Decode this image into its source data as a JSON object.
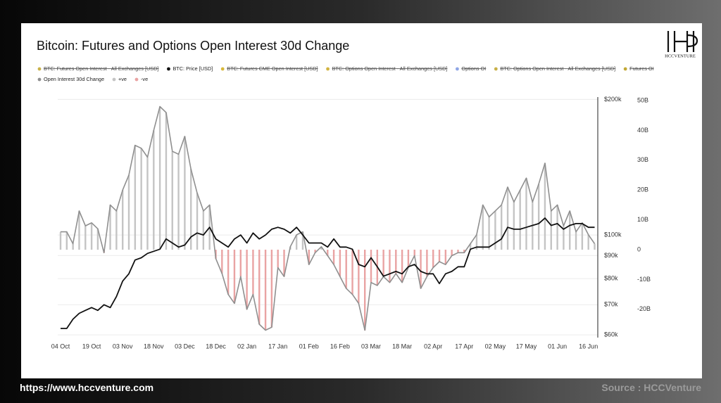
{
  "chart_data": {
    "type": "bar",
    "title": "Bitcoin: Futures and Options Open Interest 30d Change",
    "categories": [
      "04 Oct",
      null,
      null,
      null,
      null,
      "19 Oct",
      null,
      null,
      null,
      null,
      "03 Nov",
      null,
      null,
      null,
      null,
      "18 Nov",
      null,
      null,
      null,
      null,
      "03 Dec",
      null,
      null,
      null,
      null,
      "18 Dec",
      null,
      null,
      null,
      null,
      "02 Jan",
      null,
      null,
      null,
      null,
      "17 Jan",
      null,
      null,
      null,
      null,
      "01 Feb",
      null,
      null,
      null,
      null,
      "16 Feb",
      null,
      null,
      null,
      null,
      "03 Mar",
      null,
      null,
      null,
      null,
      "18 Mar",
      null,
      null,
      null,
      null,
      "02 Apr",
      null,
      null,
      null,
      null,
      "17 Apr",
      null,
      null,
      null,
      null,
      "02 May",
      null,
      null,
      null,
      null,
      "17 May",
      null,
      null,
      null,
      null,
      "01 Jun",
      null,
      null,
      null,
      null,
      "16 Jun",
      null
    ],
    "series": [
      {
        "name": "BTC: Futures Open Interest - All Exchanges [USD]",
        "color": "#c9b24a",
        "hidden": true
      },
      {
        "name": "BTC: Price [USD]",
        "color": "#111111",
        "axis": "y2",
        "values": [
          62000,
          62000,
          65000,
          67000,
          68000,
          69000,
          68000,
          70000,
          69000,
          73000,
          79000,
          82000,
          88000,
          89000,
          91000,
          92000,
          93000,
          98000,
          96000,
          94000,
          95000,
          99000,
          101000,
          100000,
          104000,
          98000,
          96000,
          94000,
          98000,
          100000,
          96000,
          101000,
          98000,
          100000,
          103000,
          104000,
          103000,
          101000,
          104000,
          100000,
          96000,
          96000,
          96000,
          94000,
          98000,
          94000,
          94000,
          93000,
          86000,
          85000,
          89000,
          85000,
          81000,
          82000,
          83000,
          82000,
          85000,
          86000,
          83000,
          82000,
          82000,
          78000,
          82000,
          83000,
          85000,
          85000,
          93000,
          94000,
          94000,
          94000,
          96000,
          98000,
          104000,
          103000,
          103000,
          104000,
          105000,
          106000,
          109000,
          105000,
          106000,
          103000,
          105000,
          106000,
          106000,
          104000,
          104000
        ]
      },
      {
        "name": "BTC: Futures CME Open Interest [USD]",
        "color": "#d8b83a",
        "hidden": true
      },
      {
        "name": "BTC: Options Open Interest - All Exchanges [USD]",
        "color": "#d2b440",
        "hidden": true
      },
      {
        "name": "Options OI",
        "color": "#8fa6e6",
        "hidden": true
      },
      {
        "name": "BTC: Options Open Interest - All Exchanges [USD]",
        "color": "#c8b048",
        "hidden": true
      },
      {
        "name": "Futures OI",
        "color": "#c2a836",
        "hidden": true
      },
      {
        "name": "Open Interest 30d Change",
        "color": "#8f8f8f",
        "positive": {
          "name": "+ve",
          "color": "#c4c4c4"
        },
        "negative": {
          "name": "-ve",
          "color": "#e9a3a3"
        },
        "values": [
          6,
          6,
          2,
          13,
          8,
          9,
          7,
          -1,
          15,
          13,
          20,
          25,
          35,
          34,
          31,
          40,
          48,
          46,
          33,
          32,
          38,
          27,
          19,
          13,
          15,
          -3,
          -8,
          -15,
          -18,
          -9,
          -20,
          -15,
          -25,
          -27,
          -26,
          -6,
          -9,
          1,
          5,
          6,
          -5,
          -1,
          1,
          -2,
          -5,
          -9,
          -13,
          -15,
          -18,
          -27,
          -11,
          -12,
          -9,
          -11,
          -8,
          -11,
          -6,
          -2,
          -13,
          -9,
          -6,
          -4,
          -5,
          -2,
          -1,
          -1,
          2,
          5,
          15,
          11,
          13,
          15,
          21,
          16,
          20,
          24,
          16,
          22,
          29,
          13,
          15,
          8,
          13,
          6,
          9,
          5,
          2
        ]
      }
    ],
    "ylim": [
      -29,
      50.7
    ],
    "yticks": [
      {
        "value": 50,
        "label": "50B"
      },
      {
        "value": 40,
        "label": "40B"
      },
      {
        "value": 30,
        "label": "30B"
      },
      {
        "value": 20,
        "label": "20B"
      },
      {
        "value": 10,
        "label": "10B"
      },
      0,
      {
        "value": -10,
        "label": "-10B"
      },
      {
        "value": -20,
        "label": "-20B"
      }
    ],
    "y2lim": [
      59600,
      201000
    ],
    "y2log": true,
    "y2ticks": [
      {
        "value": 200000,
        "label": "$200k"
      },
      {
        "value": 100000,
        "label": "$100k"
      },
      {
        "value": 90000,
        "label": "$90k"
      },
      {
        "value": 80000,
        "label": "$80k"
      },
      {
        "value": 70000,
        "label": "$70k"
      },
      {
        "value": 60000,
        "label": "$60k"
      }
    ],
    "grid": true,
    "legend": "top-left"
  },
  "logo": {
    "text": "HCCVENTURE"
  },
  "footer": {
    "url": "https://www.hccventure.com",
    "source": "Source : HCCVenture"
  }
}
